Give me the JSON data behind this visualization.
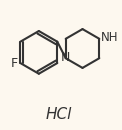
{
  "background_color": "#fdf8ef",
  "bond_color": "#333333",
  "atom_color": "#333333",
  "label_color": "#333333",
  "hcl_text": "HCl",
  "f_label": "F",
  "n_label": "N",
  "nh_label": "NH",
  "font_size": 9,
  "hcl_font_size": 11,
  "line_width": 1.5
}
